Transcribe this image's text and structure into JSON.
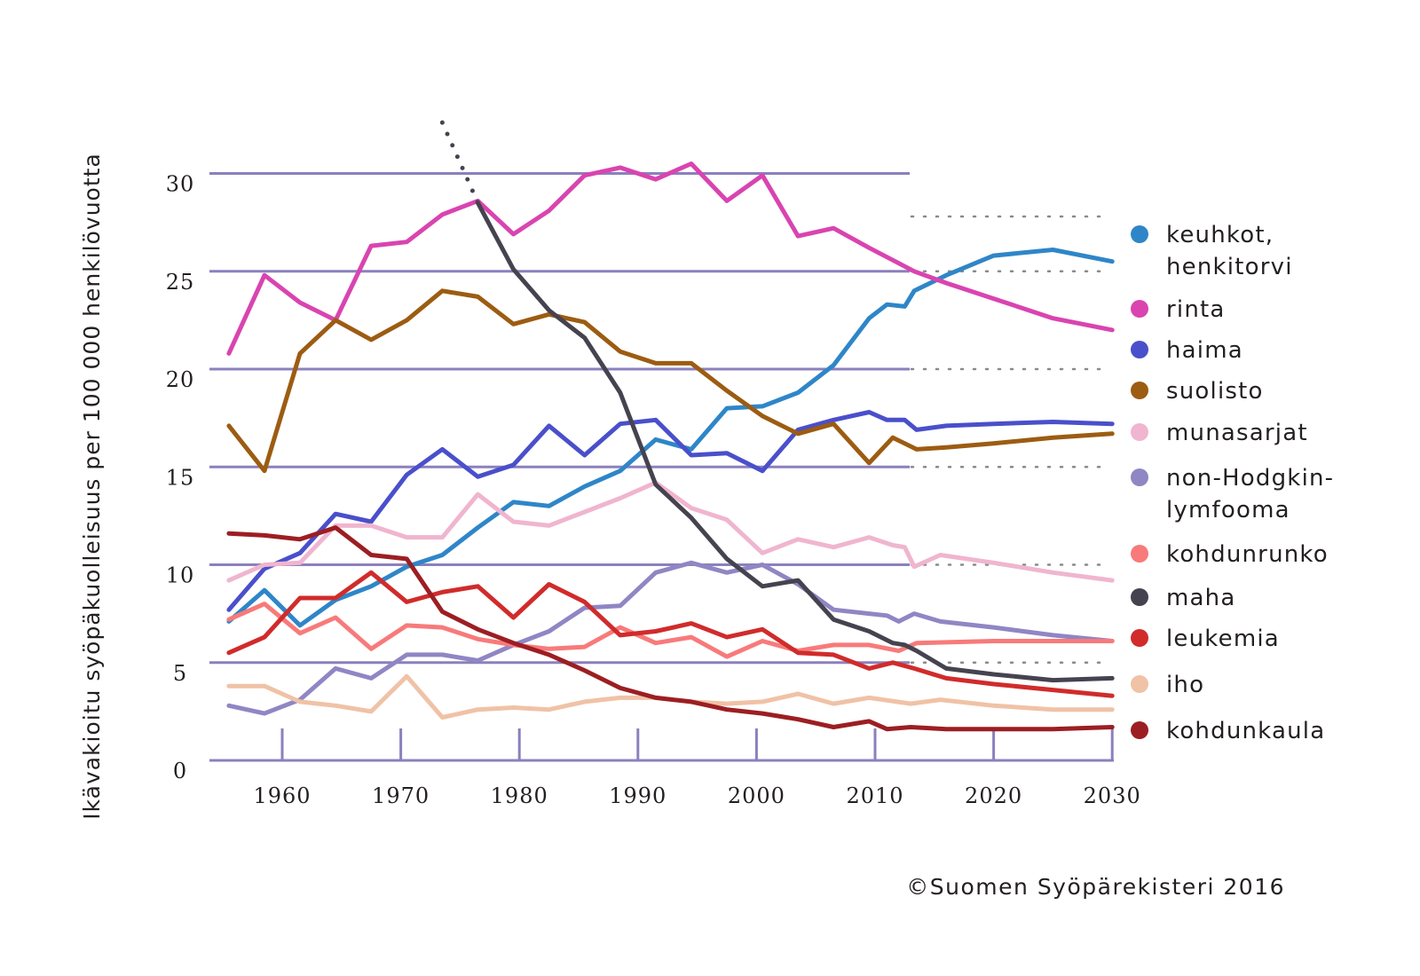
{
  "chart_data": {
    "type": "line",
    "title": "",
    "xlabel": "",
    "ylabel": "Ikävakioitu syöpäkuolleisuus per 100 000 henkilövuotta",
    "xlim": [
      1954.5,
      2030
    ],
    "ylim": [
      0,
      32
    ],
    "x_ticks": [
      1960,
      1970,
      1980,
      1990,
      2000,
      2010,
      2020,
      2030
    ],
    "x_tick_labels": [
      "1960",
      "1970",
      "1980",
      "1990",
      "2000",
      "2010",
      "2020",
      "2030"
    ],
    "y_ticks": [
      0,
      5,
      10,
      15,
      20,
      25,
      30
    ],
    "y_tick_labels": [
      "0",
      "5",
      "10",
      "15",
      "20",
      "25",
      "30"
    ],
    "grid": true,
    "grid_observed_until": 2013,
    "projection_reference_levels": [
      27.8,
      25,
      20,
      15,
      10,
      5
    ],
    "legend_position": "right",
    "credit": "©Suomen Syöpärekisteri 2016",
    "series": [
      {
        "name": "keuhkot, henkitorvi",
        "legend_lines": [
          "keuhkot,",
          "henkitorvi"
        ],
        "color": "#2e86c8",
        "points": [
          [
            1955.5,
            7.1
          ],
          [
            1958.5,
            8.7
          ],
          [
            1961.5,
            6.9
          ],
          [
            1964.5,
            8.2
          ],
          [
            1967.5,
            8.9
          ],
          [
            1970.5,
            9.9
          ],
          [
            1973.5,
            10.5
          ],
          [
            1976.5,
            11.9
          ],
          [
            1979.5,
            13.2
          ],
          [
            1982.5,
            13.0
          ],
          [
            1985.5,
            14.0
          ],
          [
            1988.5,
            14.8
          ],
          [
            1991.5,
            16.4
          ],
          [
            1994.5,
            15.9
          ],
          [
            1997.5,
            18.0
          ],
          [
            2000.5,
            18.1
          ],
          [
            2003.5,
            18.8
          ],
          [
            2006.5,
            20.2
          ],
          [
            2009.5,
            22.6
          ],
          [
            2011.0,
            23.3
          ],
          [
            2012.5,
            23.2
          ],
          [
            2013.3,
            24.0
          ],
          [
            2016,
            24.8
          ],
          [
            2020,
            25.8
          ],
          [
            2025,
            26.1
          ],
          [
            2030,
            25.5
          ]
        ]
      },
      {
        "name": "rinta",
        "legend_lines": [
          "rinta"
        ],
        "color": "#d944b0",
        "points": [
          [
            1955.5,
            20.8
          ],
          [
            1958.5,
            24.8
          ],
          [
            1961.5,
            23.4
          ],
          [
            1964.5,
            22.5
          ],
          [
            1967.5,
            26.3
          ],
          [
            1970.5,
            26.5
          ],
          [
            1973.5,
            27.9
          ],
          [
            1976.5,
            28.6
          ],
          [
            1979.5,
            26.9
          ],
          [
            1982.5,
            28.1
          ],
          [
            1985.5,
            29.9
          ],
          [
            1988.5,
            30.3
          ],
          [
            1991.5,
            29.7
          ],
          [
            1994.5,
            30.5
          ],
          [
            1997.5,
            28.6
          ],
          [
            2000.5,
            29.9
          ],
          [
            2003.5,
            26.8
          ],
          [
            2006.5,
            27.2
          ],
          [
            2009.5,
            26.2
          ],
          [
            2013.3,
            25.0
          ],
          [
            2016,
            24.4
          ],
          [
            2020,
            23.6
          ],
          [
            2025,
            22.6
          ],
          [
            2030,
            22.0
          ]
        ]
      },
      {
        "name": "haima",
        "legend_lines": [
          "haima"
        ],
        "color": "#4a4fcb",
        "points": [
          [
            1955.5,
            7.7
          ],
          [
            1958.5,
            9.8
          ],
          [
            1961.5,
            10.6
          ],
          [
            1964.5,
            12.6
          ],
          [
            1967.5,
            12.2
          ],
          [
            1970.5,
            14.6
          ],
          [
            1973.5,
            15.9
          ],
          [
            1976.5,
            14.5
          ],
          [
            1979.5,
            15.1
          ],
          [
            1982.5,
            17.1
          ],
          [
            1985.5,
            15.6
          ],
          [
            1988.5,
            17.2
          ],
          [
            1991.5,
            17.4
          ],
          [
            1994.5,
            15.6
          ],
          [
            1997.5,
            15.7
          ],
          [
            2000.5,
            14.8
          ],
          [
            2003.5,
            16.9
          ],
          [
            2006.5,
            17.4
          ],
          [
            2009.5,
            17.8
          ],
          [
            2011.0,
            17.4
          ],
          [
            2012.5,
            17.4
          ],
          [
            2013.5,
            16.9
          ],
          [
            2016,
            17.1
          ],
          [
            2020,
            17.2
          ],
          [
            2025,
            17.3
          ],
          [
            2030,
            17.2
          ]
        ]
      },
      {
        "name": "suolisto",
        "legend_lines": [
          "suolisto"
        ],
        "color": "#9c5c12",
        "points": [
          [
            1955.5,
            17.1
          ],
          [
            1958.5,
            14.8
          ],
          [
            1961.5,
            20.8
          ],
          [
            1964.5,
            22.5
          ],
          [
            1967.5,
            21.5
          ],
          [
            1970.5,
            22.5
          ],
          [
            1973.5,
            24.0
          ],
          [
            1976.5,
            23.7
          ],
          [
            1979.5,
            22.3
          ],
          [
            1982.5,
            22.8
          ],
          [
            1985.5,
            22.4
          ],
          [
            1988.5,
            20.9
          ],
          [
            1991.5,
            20.3
          ],
          [
            1994.5,
            20.3
          ],
          [
            1997.5,
            18.9
          ],
          [
            2000.5,
            17.6
          ],
          [
            2003.5,
            16.7
          ],
          [
            2006.5,
            17.2
          ],
          [
            2009.5,
            15.2
          ],
          [
            2011.5,
            16.5
          ],
          [
            2013.5,
            15.9
          ],
          [
            2016,
            16.0
          ],
          [
            2020,
            16.2
          ],
          [
            2025,
            16.5
          ],
          [
            2030,
            16.7
          ]
        ]
      },
      {
        "name": "munasarjat",
        "legend_lines": [
          "munasarjat"
        ],
        "color": "#f0b5cf",
        "points": [
          [
            1955.5,
            9.2
          ],
          [
            1958.5,
            10.0
          ],
          [
            1961.5,
            10.1
          ],
          [
            1964.5,
            12.0
          ],
          [
            1967.5,
            12.0
          ],
          [
            1970.5,
            11.4
          ],
          [
            1973.5,
            11.4
          ],
          [
            1976.5,
            13.6
          ],
          [
            1979.5,
            12.2
          ],
          [
            1982.5,
            12.0
          ],
          [
            1985.5,
            12.7
          ],
          [
            1988.5,
            13.4
          ],
          [
            1991.5,
            14.2
          ],
          [
            1994.5,
            12.9
          ],
          [
            1997.5,
            12.3
          ],
          [
            2000.5,
            10.6
          ],
          [
            2003.5,
            11.3
          ],
          [
            2006.5,
            10.9
          ],
          [
            2009.5,
            11.4
          ],
          [
            2011.5,
            11.0
          ],
          [
            2012.5,
            10.9
          ],
          [
            2013.3,
            9.9
          ],
          [
            2015.5,
            10.5
          ],
          [
            2020,
            10.1
          ],
          [
            2025,
            9.6
          ],
          [
            2030,
            9.2
          ]
        ]
      },
      {
        "name": "non-Hodgkin-lymfooma",
        "legend_lines": [
          "non-Hodgkin-",
          "lymfooma"
        ],
        "color": "#8f86c4",
        "points": [
          [
            1955.5,
            2.8
          ],
          [
            1958.5,
            2.4
          ],
          [
            1961.5,
            3.1
          ],
          [
            1964.5,
            4.7
          ],
          [
            1967.5,
            4.2
          ],
          [
            1970.5,
            5.4
          ],
          [
            1973.5,
            5.4
          ],
          [
            1976.5,
            5.1
          ],
          [
            1979.5,
            5.9
          ],
          [
            1982.5,
            6.6
          ],
          [
            1985.5,
            7.8
          ],
          [
            1988.5,
            7.9
          ],
          [
            1991.5,
            9.6
          ],
          [
            1994.5,
            10.1
          ],
          [
            1997.5,
            9.6
          ],
          [
            2000.5,
            10.0
          ],
          [
            2003.5,
            9.0
          ],
          [
            2006.5,
            7.7
          ],
          [
            2009.5,
            7.5
          ],
          [
            2011.0,
            7.4
          ],
          [
            2012.0,
            7.1
          ],
          [
            2013.3,
            7.5
          ],
          [
            2015.5,
            7.1
          ],
          [
            2020,
            6.8
          ],
          [
            2025,
            6.4
          ],
          [
            2030,
            6.1
          ]
        ]
      },
      {
        "name": "kohdunrunko",
        "legend_lines": [
          "kohdunrunko"
        ],
        "color": "#f87a7a",
        "points": [
          [
            1955.5,
            7.2
          ],
          [
            1958.5,
            8.0
          ],
          [
            1961.5,
            6.5
          ],
          [
            1964.5,
            7.3
          ],
          [
            1967.5,
            5.7
          ],
          [
            1970.5,
            6.9
          ],
          [
            1973.5,
            6.8
          ],
          [
            1976.5,
            6.2
          ],
          [
            1979.5,
            5.9
          ],
          [
            1982.5,
            5.7
          ],
          [
            1985.5,
            5.8
          ],
          [
            1988.5,
            6.8
          ],
          [
            1991.5,
            6.0
          ],
          [
            1994.5,
            6.3
          ],
          [
            1997.5,
            5.3
          ],
          [
            2000.5,
            6.1
          ],
          [
            2003.5,
            5.6
          ],
          [
            2006.5,
            5.9
          ],
          [
            2009.5,
            5.9
          ],
          [
            2012.0,
            5.6
          ],
          [
            2013.5,
            6.0
          ],
          [
            2020,
            6.1
          ],
          [
            2025,
            6.1
          ],
          [
            2030,
            6.1
          ]
        ]
      },
      {
        "name": "maha",
        "legend_lines": [
          "maha"
        ],
        "color": "#45434f",
        "extrapolated_start": [
          [
            1973.5,
            32.6
          ],
          [
            1976.5,
            28.5
          ]
        ],
        "points": [
          [
            1976.5,
            28.5
          ],
          [
            1979.5,
            25.1
          ],
          [
            1982.5,
            23.0
          ],
          [
            1985.5,
            21.6
          ],
          [
            1988.5,
            18.8
          ],
          [
            1991.5,
            14.1
          ],
          [
            1994.5,
            12.4
          ],
          [
            1997.5,
            10.3
          ],
          [
            2000.5,
            8.9
          ],
          [
            2003.5,
            9.2
          ],
          [
            2006.5,
            7.2
          ],
          [
            2009.5,
            6.6
          ],
          [
            2011.5,
            6.0
          ],
          [
            2012.5,
            5.9
          ],
          [
            2013.5,
            5.6
          ],
          [
            2016,
            4.7
          ],
          [
            2020,
            4.4
          ],
          [
            2025,
            4.1
          ],
          [
            2030,
            4.2
          ]
        ]
      },
      {
        "name": "leukemia",
        "legend_lines": [
          "leukemia"
        ],
        "color": "#d12b2b",
        "points": [
          [
            1955.5,
            5.5
          ],
          [
            1958.5,
            6.3
          ],
          [
            1961.5,
            8.3
          ],
          [
            1964.5,
            8.3
          ],
          [
            1967.5,
            9.6
          ],
          [
            1970.5,
            8.1
          ],
          [
            1973.5,
            8.6
          ],
          [
            1976.5,
            8.9
          ],
          [
            1979.5,
            7.3
          ],
          [
            1982.5,
            9.0
          ],
          [
            1985.5,
            8.1
          ],
          [
            1988.5,
            6.4
          ],
          [
            1991.5,
            6.6
          ],
          [
            1994.5,
            7.0
          ],
          [
            1997.5,
            6.3
          ],
          [
            2000.5,
            6.7
          ],
          [
            2003.5,
            5.5
          ],
          [
            2006.5,
            5.4
          ],
          [
            2009.5,
            4.7
          ],
          [
            2011.5,
            5.0
          ],
          [
            2013.3,
            4.7
          ],
          [
            2016,
            4.2
          ],
          [
            2020,
            3.9
          ],
          [
            2025,
            3.6
          ],
          [
            2030,
            3.3
          ]
        ]
      },
      {
        "name": "iho",
        "legend_lines": [
          "iho"
        ],
        "color": "#f0c2a6",
        "points": [
          [
            1955.5,
            3.8
          ],
          [
            1958.5,
            3.8
          ],
          [
            1961.5,
            3.0
          ],
          [
            1964.5,
            2.8
          ],
          [
            1967.5,
            2.5
          ],
          [
            1970.5,
            4.3
          ],
          [
            1973.5,
            2.2
          ],
          [
            1976.5,
            2.6
          ],
          [
            1979.5,
            2.7
          ],
          [
            1982.5,
            2.6
          ],
          [
            1985.5,
            3.0
          ],
          [
            1988.5,
            3.2
          ],
          [
            1991.5,
            3.2
          ],
          [
            1994.5,
            3.0
          ],
          [
            1997.5,
            2.9
          ],
          [
            2000.5,
            3.0
          ],
          [
            2003.5,
            3.4
          ],
          [
            2006.5,
            2.9
          ],
          [
            2009.5,
            3.2
          ],
          [
            2013.0,
            2.9
          ],
          [
            2015.5,
            3.1
          ],
          [
            2020,
            2.8
          ],
          [
            2025,
            2.6
          ],
          [
            2030,
            2.6
          ]
        ]
      },
      {
        "name": "kohdunkaula",
        "legend_lines": [
          "kohdunkaula"
        ],
        "color": "#9c1e22",
        "points": [
          [
            1955.5,
            11.6
          ],
          [
            1958.5,
            11.5
          ],
          [
            1961.5,
            11.3
          ],
          [
            1964.5,
            11.9
          ],
          [
            1967.5,
            10.5
          ],
          [
            1970.5,
            10.3
          ],
          [
            1973.5,
            7.6
          ],
          [
            1976.5,
            6.7
          ],
          [
            1979.5,
            6.0
          ],
          [
            1982.5,
            5.4
          ],
          [
            1985.5,
            4.6
          ],
          [
            1988.5,
            3.7
          ],
          [
            1991.5,
            3.2
          ],
          [
            1994.5,
            3.0
          ],
          [
            1997.5,
            2.6
          ],
          [
            2000.5,
            2.4
          ],
          [
            2003.5,
            2.1
          ],
          [
            2006.5,
            1.7
          ],
          [
            2009.5,
            2.0
          ],
          [
            2011.0,
            1.6
          ],
          [
            2013.0,
            1.7
          ],
          [
            2016,
            1.6
          ],
          [
            2020,
            1.6
          ],
          [
            2025,
            1.6
          ],
          [
            2030,
            1.7
          ]
        ]
      }
    ]
  }
}
